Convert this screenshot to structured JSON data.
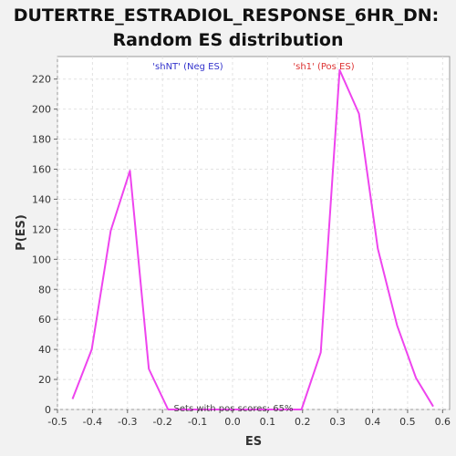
{
  "chart_data": {
    "type": "line",
    "title_line1": "DUTERTRE_ESTRADIOL_RESPONSE_6HR_DN:",
    "title_line2": "Random ES distribution",
    "xlabel": "ES",
    "ylabel": "P(ES)",
    "xlim": [
      -0.5,
      0.62
    ],
    "ylim": [
      0,
      235
    ],
    "xticks": [
      -0.5,
      -0.4,
      -0.3,
      -0.2,
      -0.1,
      0.0,
      0.1,
      0.2,
      0.3,
      0.4,
      0.5,
      0.6
    ],
    "xtick_labels": [
      "-0.5",
      "-0.4",
      "-0.3",
      "-0.2",
      "-0.1",
      "0.0",
      "0.1",
      "0.2",
      "0.3",
      "0.4",
      "0.5",
      "0.6"
    ],
    "yticks": [
      0,
      20,
      40,
      60,
      80,
      100,
      120,
      140,
      160,
      180,
      200,
      220
    ],
    "yticks_labels": [
      "0",
      "20",
      "40",
      "60",
      "80",
      "100",
      "120",
      "140",
      "160",
      "180",
      "200",
      "220"
    ],
    "grid": true,
    "series": [
      {
        "color": "#ee44ee",
        "x": [
          -0.457,
          -0.402,
          -0.348,
          -0.293,
          -0.239,
          -0.184,
          -0.13,
          -0.075,
          -0.021,
          0.034,
          0.088,
          0.143,
          0.197,
          0.252,
          0.306,
          0.361,
          0.415,
          0.47,
          0.524,
          0.573
        ],
        "y": [
          7,
          40,
          119,
          159,
          27,
          0,
          0,
          0,
          0,
          0,
          0,
          0,
          0,
          38,
          226,
          197,
          107,
          56,
          21,
          2
        ]
      }
    ],
    "annotations": {
      "neg_label": "'shNT' (Neg ES)",
      "neg_color": "#3333cc",
      "pos_label": "'sh1' (Pos ES)",
      "pos_color": "#dd3333",
      "footer": "Sets with pos scores: 65%"
    }
  }
}
